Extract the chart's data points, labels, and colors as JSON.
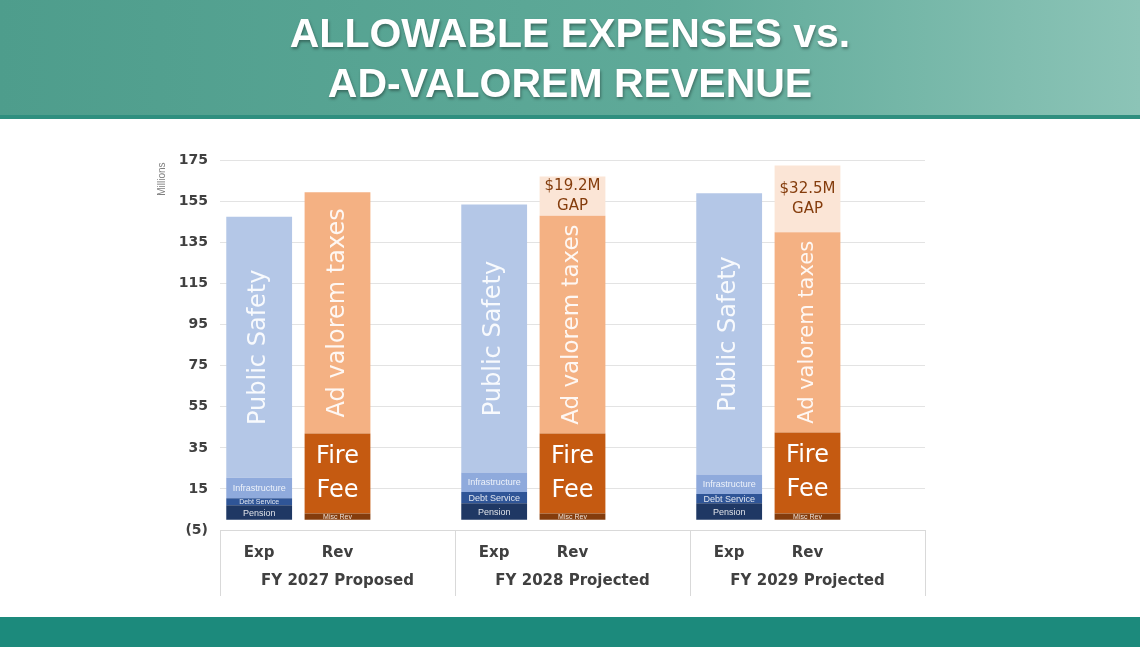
{
  "chart_data": {
    "type": "bar",
    "title": "ALLOWABLE EXPENSES vs.\nAD-VALOREM REVENUE",
    "ylabel": "Millions",
    "categories": [
      "Exp",
      "Rev",
      null,
      "Exp",
      "Rev",
      null,
      "Exp",
      "Rev",
      null
    ],
    "annotations": [
      "FY 2027 Proposed",
      "FY 2028 Projected",
      "FY 2029 Projected"
    ],
    "stacked": true,
    "ylim": [
      -5,
      175
    ],
    "yticks": [
      {
        "value": -5,
        "label": "(5)"
      },
      15,
      35,
      55,
      75,
      95,
      115,
      135,
      155,
      175
    ],
    "grid": "y",
    "legend": false,
    "series": [
      {
        "name": "Pension",
        "color": "#1f3864",
        "values": [
          7,
          null,
          null,
          8,
          null,
          null,
          8,
          null,
          null
        ]
      },
      {
        "name": "Debt Service",
        "color": "#2f5597",
        "values": [
          3.5,
          null,
          null,
          5.5,
          null,
          null,
          4.5,
          null,
          null
        ]
      },
      {
        "name": "Infrastructure",
        "color": "#8faadc",
        "values": [
          10,
          null,
          null,
          9.5,
          null,
          null,
          9.5,
          null,
          null
        ]
      },
      {
        "name": "Public Safety",
        "color": "#b4c7e7",
        "values": [
          127,
          null,
          null,
          130.5,
          null,
          null,
          137,
          null,
          null
        ]
      },
      {
        "name": "Misc Rev",
        "color": "#843c0c",
        "values": [
          null,
          3,
          null,
          null,
          3,
          null,
          null,
          3,
          null
        ]
      },
      {
        "name": "Fire Fee",
        "color": "#c55a11",
        "values": [
          null,
          39,
          null,
          null,
          39,
          null,
          null,
          39.5,
          null
        ]
      },
      {
        "name": "Ad valorem taxes",
        "color": "#f4b183",
        "values": [
          null,
          117.5,
          null,
          null,
          106,
          null,
          null,
          97.5,
          null
        ]
      },
      {
        "color": "#fbe5d6",
        "values": [
          null,
          null,
          null,
          null,
          19.2,
          null,
          null,
          32.5,
          null
        ],
        "value_labels": [
          null,
          null,
          null,
          null,
          "$19.2M GAP",
          null,
          null,
          "$32.5M GAP",
          null
        ]
      }
    ]
  }
}
